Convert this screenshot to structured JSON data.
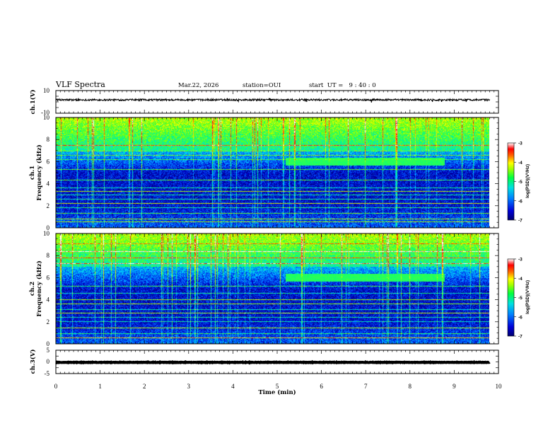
{
  "header": {
    "title": "VLF Spectra",
    "date": "Mar.22, 2026",
    "station": "station=OUI",
    "start": "start  UT =   9 : 40 : 0"
  },
  "chart_data": [
    {
      "type": "line",
      "panel": "ch1-waveform",
      "ylabel": "ch.1(V)",
      "ylim": [
        -10,
        10
      ],
      "yticks": [
        "10",
        "-10"
      ],
      "level": 1.8,
      "amplitude": 0.8
    },
    {
      "type": "heatmap",
      "panel": "ch1-spectrogram",
      "ylabel_line1": "ch.1",
      "ylabel_line2": "Frequency (kHz)",
      "ylim": [
        0,
        10
      ],
      "yticks": [
        "0",
        "2",
        "4",
        "6",
        "8",
        "10"
      ],
      "colorbar": {
        "label": "log(PSD)(V²/Hz)",
        "range": [
          -7,
          -3
        ],
        "ticks": [
          "-3",
          "-4",
          "-5",
          "-6",
          "-7"
        ]
      },
      "lines_kHz": [
        0.5,
        0.8,
        1.3,
        1.8,
        2.2,
        2.6,
        3.0,
        3.3,
        3.6,
        4.3,
        5.3,
        6.2,
        6.6,
        7.0,
        7.5
      ],
      "extra_band": {
        "t_start": 5.2,
        "t_end": 8.8,
        "freq_kHz": 6.0
      }
    },
    {
      "type": "heatmap",
      "panel": "ch2-spectrogram",
      "ylabel_line1": "ch.2",
      "ylabel_line2": "Frequency (kHz)",
      "ylim": [
        0,
        10
      ],
      "yticks": [
        "0",
        "2",
        "4",
        "6",
        "8",
        "10"
      ],
      "colorbar": {
        "label": "log(PSD)(V²/Hz)",
        "range": [
          -7,
          -3
        ],
        "ticks": [
          "-3",
          "-4",
          "-5",
          "-6",
          "-7"
        ]
      },
      "lines_kHz": [
        0.5,
        0.9,
        1.4,
        2.0,
        2.4,
        2.8,
        3.1,
        3.6,
        4.0,
        4.6,
        5.2,
        7.3,
        7.8,
        8.4,
        9.1
      ],
      "extra_band": {
        "t_start": 5.2,
        "t_end": 8.8,
        "freq_kHz": 6.0
      }
    },
    {
      "type": "line",
      "panel": "ch3-waveform",
      "ylabel": "ch.3(V)",
      "ylim": [
        -5,
        5
      ],
      "yticks": [
        "5",
        "0",
        "-5"
      ],
      "level": -0.2,
      "amplitude": 0.1,
      "xlabel": "Time  (min)",
      "xlim": [
        0,
        10
      ],
      "xticks": [
        "0",
        "1",
        "2",
        "3",
        "4",
        "5",
        "6",
        "7",
        "8",
        "9",
        "10"
      ]
    }
  ],
  "colors": {
    "background_deep": "#000066",
    "colormap": [
      "#000070",
      "#0000c8",
      "#0060ff",
      "#00d0ff",
      "#00ff80",
      "#80ff00",
      "#ffff00",
      "#ff8000",
      "#ff0000",
      "#ffffff"
    ]
  }
}
